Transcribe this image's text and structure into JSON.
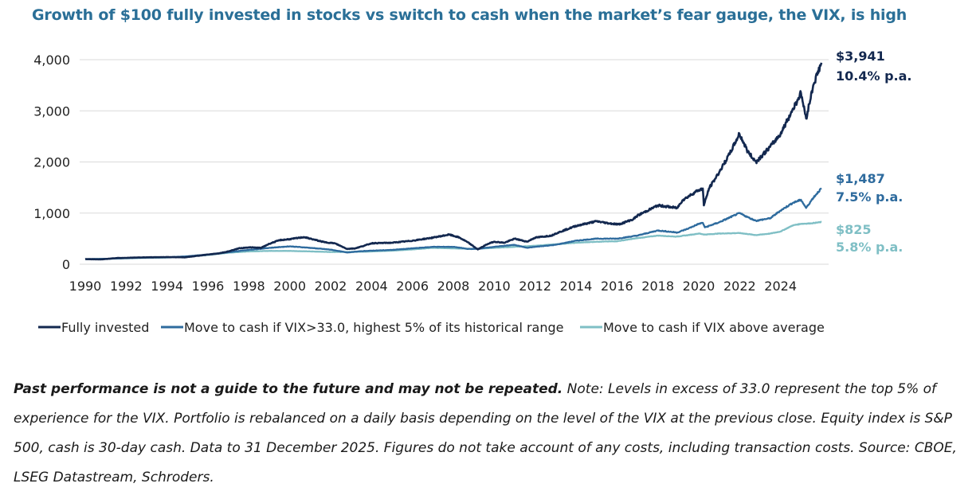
{
  "title": "Growth of $100 fully invested in stocks vs switch to cash when the market’s fear gauge, the VIX, is high",
  "colors": {
    "fully_invested": "#13284f",
    "vix_33": "#2e6b9e",
    "vix_avg": "#7fbfc5",
    "grid": "#dadada",
    "title": "#2a6f97",
    "axis_text": "#222222"
  },
  "chart_data": {
    "type": "line",
    "title": "Growth of $100 fully invested in stocks vs switch to cash when the market’s fear gauge, the VIX, is high",
    "xlabel": "",
    "ylabel": "",
    "xlim": [
      1990,
      2026
    ],
    "ylim": [
      0,
      4000
    ],
    "x_ticks": [
      1990,
      1992,
      1994,
      1996,
      1998,
      2000,
      2002,
      2004,
      2006,
      2008,
      2010,
      2012,
      2014,
      2016,
      2018,
      2020,
      2022,
      2024
    ],
    "x_tick_labels": [
      "1990",
      "1992",
      "1994",
      "1996",
      "1998",
      "2000",
      "2002",
      "2004",
      "2006",
      "2008",
      "2010",
      "2012",
      "2014",
      "2016",
      "2018",
      "2020",
      "2022",
      "2024"
    ],
    "y_ticks": [
      0,
      1000,
      2000,
      3000,
      4000
    ],
    "y_tick_labels": [
      "0",
      "1,000",
      "2,000",
      "3,000",
      "4,000"
    ],
    "grid": "horizontal",
    "legend_position": "bottom",
    "series": [
      {
        "name": "Fully invested",
        "legend_label": "Fully invested",
        "color_key": "fully_invested",
        "end_value_label": "$3,941",
        "end_return_label": "10.4% p.a.",
        "points": [
          [
            1990,
            100
          ],
          [
            1990.8,
            95
          ],
          [
            1991.5,
            120
          ],
          [
            1992,
            125
          ],
          [
            1993,
            135
          ],
          [
            1994,
            140
          ],
          [
            1994.9,
            135
          ],
          [
            1995.5,
            165
          ],
          [
            1996,
            190
          ],
          [
            1996.5,
            210
          ],
          [
            1997,
            250
          ],
          [
            1997.5,
            310
          ],
          [
            1998,
            330
          ],
          [
            1998.6,
            320
          ],
          [
            1999,
            400
          ],
          [
            1999.5,
            470
          ],
          [
            2000,
            490
          ],
          [
            2000.7,
            530
          ],
          [
            2001.2,
            480
          ],
          [
            2001.7,
            430
          ],
          [
            2002.2,
            410
          ],
          [
            2002.8,
            300
          ],
          [
            2003.2,
            310
          ],
          [
            2003.7,
            370
          ],
          [
            2004,
            410
          ],
          [
            2005,
            420
          ],
          [
            2006,
            460
          ],
          [
            2007,
            520
          ],
          [
            2007.8,
            580
          ],
          [
            2008.3,
            520
          ],
          [
            2008.7,
            430
          ],
          [
            2009.2,
            290
          ],
          [
            2009.7,
            400
          ],
          [
            2010,
            440
          ],
          [
            2010.5,
            420
          ],
          [
            2011,
            500
          ],
          [
            2011.6,
            440
          ],
          [
            2012,
            520
          ],
          [
            2012.8,
            560
          ],
          [
            2013,
            600
          ],
          [
            2014,
            750
          ],
          [
            2015,
            840
          ],
          [
            2015.6,
            800
          ],
          [
            2016.1,
            780
          ],
          [
            2016.8,
            880
          ],
          [
            2017,
            950
          ],
          [
            2018,
            1150
          ],
          [
            2018.95,
            1100
          ],
          [
            2019.2,
            1250
          ],
          [
            2019.9,
            1430
          ],
          [
            2020.2,
            1480
          ],
          [
            2020.25,
            1150
          ],
          [
            2020.5,
            1480
          ],
          [
            2021,
            1800
          ],
          [
            2021.5,
            2150
          ],
          [
            2021.99,
            2550
          ],
          [
            2022.4,
            2200
          ],
          [
            2022.8,
            2000
          ],
          [
            2023.5,
            2300
          ],
          [
            2024,
            2550
          ],
          [
            2024.5,
            2950
          ],
          [
            2025,
            3350
          ],
          [
            2025.25,
            2850
          ],
          [
            2025.6,
            3500
          ],
          [
            2026,
            3941
          ]
        ]
      },
      {
        "name": "Move to cash if VIX>33.0, highest 5% of its historical range",
        "legend_label": "Move to cash if VIX>33.0, highest 5% of its historical range",
        "color_key": "vix_33",
        "end_value_label": "$1,487",
        "end_return_label": "7.5% p.a.",
        "points": [
          [
            1990,
            100
          ],
          [
            1991,
            105
          ],
          [
            1992,
            120
          ],
          [
            1993,
            130
          ],
          [
            1994,
            135
          ],
          [
            1995,
            155
          ],
          [
            1996,
            190
          ],
          [
            1997,
            235
          ],
          [
            1998,
            280
          ],
          [
            1999,
            320
          ],
          [
            2000,
            350
          ],
          [
            2001,
            320
          ],
          [
            2002,
            285
          ],
          [
            2002.8,
            230
          ],
          [
            2003.5,
            255
          ],
          [
            2004,
            265
          ],
          [
            2005,
            280
          ],
          [
            2006,
            310
          ],
          [
            2007,
            340
          ],
          [
            2008,
            340
          ],
          [
            2008.7,
            300
          ],
          [
            2009.2,
            300
          ],
          [
            2010,
            340
          ],
          [
            2011,
            380
          ],
          [
            2011.6,
            320
          ],
          [
            2012,
            340
          ],
          [
            2013,
            380
          ],
          [
            2014,
            460
          ],
          [
            2015,
            500
          ],
          [
            2016,
            500
          ],
          [
            2017,
            560
          ],
          [
            2018,
            660
          ],
          [
            2018.95,
            620
          ],
          [
            2019.5,
            700
          ],
          [
            2020,
            790
          ],
          [
            2020.2,
            810
          ],
          [
            2020.3,
            720
          ],
          [
            2021,
            820
          ],
          [
            2021.99,
            1000
          ],
          [
            2022.5,
            900
          ],
          [
            2022.8,
            850
          ],
          [
            2023.5,
            900
          ],
          [
            2024,
            1050
          ],
          [
            2024.6,
            1200
          ],
          [
            2025,
            1260
          ],
          [
            2025.25,
            1100
          ],
          [
            2025.6,
            1300
          ],
          [
            2026,
            1487
          ]
        ]
      },
      {
        "name": "Move to cash if VIX above average",
        "legend_label": "Move to cash if VIX above average",
        "color_key": "vix_avg",
        "end_value_label": "$825",
        "end_return_label": "5.8% p.a.",
        "points": [
          [
            1990,
            100
          ],
          [
            1991,
            105
          ],
          [
            1992,
            115
          ],
          [
            1993,
            125
          ],
          [
            1994,
            130
          ],
          [
            1995,
            150
          ],
          [
            1996,
            180
          ],
          [
            1997,
            225
          ],
          [
            1998,
            250
          ],
          [
            1999,
            260
          ],
          [
            2000,
            260
          ],
          [
            2001,
            250
          ],
          [
            2002,
            240
          ],
          [
            2003,
            240
          ],
          [
            2004,
            250
          ],
          [
            2005,
            265
          ],
          [
            2006,
            290
          ],
          [
            2007,
            320
          ],
          [
            2008,
            310
          ],
          [
            2009,
            300
          ],
          [
            2010,
            320
          ],
          [
            2011,
            340
          ],
          [
            2012,
            360
          ],
          [
            2013,
            390
          ],
          [
            2014,
            420
          ],
          [
            2015,
            440
          ],
          [
            2016,
            450
          ],
          [
            2017,
            510
          ],
          [
            2018,
            560
          ],
          [
            2018.9,
            540
          ],
          [
            2019.5,
            570
          ],
          [
            2020,
            600
          ],
          [
            2020.3,
            580
          ],
          [
            2021,
            600
          ],
          [
            2022,
            610
          ],
          [
            2022.8,
            570
          ],
          [
            2023.5,
            600
          ],
          [
            2024,
            640
          ],
          [
            2024.6,
            760
          ],
          [
            2025,
            790
          ],
          [
            2025.5,
            800
          ],
          [
            2026,
            825
          ]
        ]
      }
    ]
  },
  "note": {
    "bold_text": "Past performance is not a guide to the future and may not be repeated.",
    "text": " Note: Levels in excess of 33.0 represent the top 5% of experience for the VIX.  Portfolio is rebalanced on a daily basis depending on the level of the VIX at the previous close. Equity index is S&P 500, cash is 30-day cash. Data to 31 December 2025. Figures do not take account of any costs, including transaction costs. Source: CBOE, LSEG Datastream, Schroders."
  }
}
